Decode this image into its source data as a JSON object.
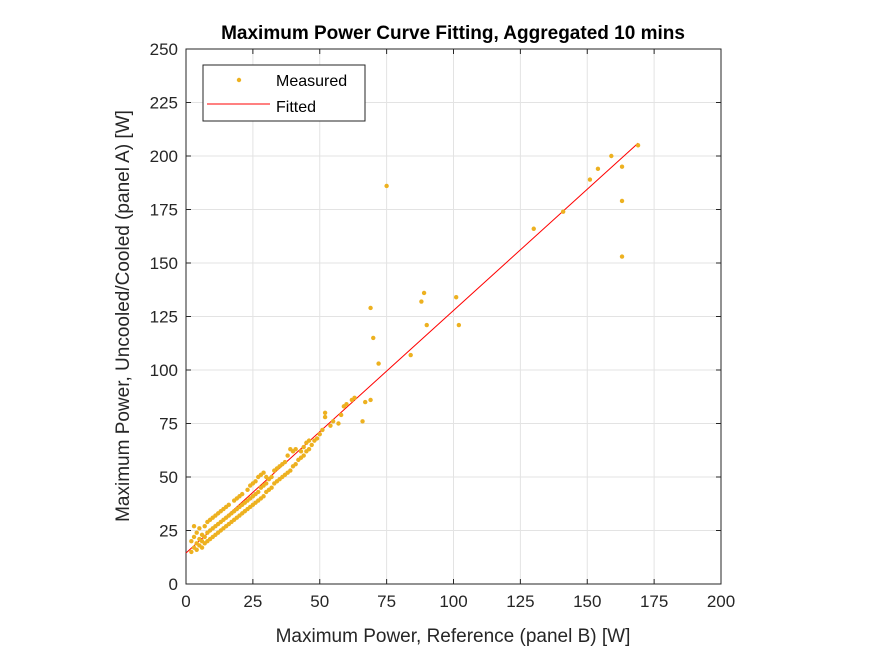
{
  "chart_data": {
    "type": "scatter",
    "title": "Maximum Power Curve Fitting, Aggregated 10 mins",
    "xlabel": "Maximum Power, Reference (panel B) [W]",
    "ylabel": "Maximum Power, Uncooled/Cooled (panel A) [W]",
    "xlim": [
      0,
      200
    ],
    "ylim": [
      0,
      250
    ],
    "xticks": [
      0,
      25,
      50,
      75,
      100,
      125,
      150,
      175,
      200
    ],
    "yticks": [
      0,
      25,
      50,
      75,
      100,
      125,
      150,
      175,
      200,
      225,
      250
    ],
    "grid": true,
    "legend_position": "top-left",
    "series": [
      {
        "name": "Measured",
        "style": "markers",
        "color": "#EDB120",
        "points": [
          [
            2,
            15
          ],
          [
            2,
            20
          ],
          [
            3,
            17
          ],
          [
            3,
            22
          ],
          [
            3,
            27
          ],
          [
            4,
            16
          ],
          [
            4,
            19
          ],
          [
            4,
            24
          ],
          [
            5,
            18
          ],
          [
            5,
            21
          ],
          [
            5,
            26
          ],
          [
            6,
            17
          ],
          [
            6,
            20
          ],
          [
            6,
            23
          ],
          [
            7,
            19
          ],
          [
            7,
            22
          ],
          [
            7,
            27
          ],
          [
            8,
            20
          ],
          [
            8,
            24
          ],
          [
            8,
            29
          ],
          [
            9,
            21
          ],
          [
            9,
            25
          ],
          [
            9,
            30
          ],
          [
            10,
            22
          ],
          [
            10,
            26
          ],
          [
            10,
            31
          ],
          [
            11,
            23
          ],
          [
            11,
            27
          ],
          [
            11,
            32
          ],
          [
            12,
            24
          ],
          [
            12,
            28
          ],
          [
            12,
            33
          ],
          [
            13,
            25
          ],
          [
            13,
            29
          ],
          [
            13,
            34
          ],
          [
            14,
            26
          ],
          [
            14,
            30
          ],
          [
            14,
            35
          ],
          [
            15,
            27
          ],
          [
            15,
            31
          ],
          [
            15,
            36
          ],
          [
            16,
            28
          ],
          [
            16,
            32
          ],
          [
            16,
            37
          ],
          [
            17,
            29
          ],
          [
            17,
            33
          ],
          [
            18,
            30
          ],
          [
            18,
            34
          ],
          [
            18,
            39
          ],
          [
            19,
            31
          ],
          [
            19,
            35
          ],
          [
            19,
            40
          ],
          [
            20,
            32
          ],
          [
            20,
            36
          ],
          [
            20,
            41
          ],
          [
            21,
            33
          ],
          [
            21,
            37
          ],
          [
            21,
            42
          ],
          [
            22,
            34
          ],
          [
            22,
            38
          ],
          [
            23,
            35
          ],
          [
            23,
            39
          ],
          [
            23,
            44
          ],
          [
            24,
            36
          ],
          [
            24,
            40
          ],
          [
            24,
            46
          ],
          [
            25,
            37
          ],
          [
            25,
            41
          ],
          [
            25,
            47
          ],
          [
            26,
            38
          ],
          [
            26,
            42
          ],
          [
            26,
            48
          ],
          [
            27,
            39
          ],
          [
            27,
            43
          ],
          [
            27,
            50
          ],
          [
            28,
            40
          ],
          [
            28,
            45
          ],
          [
            28,
            51
          ],
          [
            29,
            41
          ],
          [
            29,
            46
          ],
          [
            29,
            52
          ],
          [
            30,
            43
          ],
          [
            30,
            47
          ],
          [
            30,
            50
          ],
          [
            31,
            44
          ],
          [
            31,
            49
          ],
          [
            32,
            45
          ],
          [
            32,
            50
          ],
          [
            33,
            47
          ],
          [
            33,
            53
          ],
          [
            34,
            48
          ],
          [
            34,
            54
          ],
          [
            35,
            49
          ],
          [
            35,
            55
          ],
          [
            36,
            50
          ],
          [
            36,
            56
          ],
          [
            37,
            51
          ],
          [
            37,
            57
          ],
          [
            38,
            52
          ],
          [
            38,
            60
          ],
          [
            39,
            53
          ],
          [
            39,
            63
          ],
          [
            40,
            55
          ],
          [
            40,
            62
          ],
          [
            41,
            56
          ],
          [
            41,
            63
          ],
          [
            42,
            58
          ],
          [
            43,
            59
          ],
          [
            43,
            62
          ],
          [
            44,
            60
          ],
          [
            44,
            64
          ],
          [
            45,
            62
          ],
          [
            45,
            66
          ],
          [
            46,
            63
          ],
          [
            46,
            67
          ],
          [
            47,
            65
          ],
          [
            48,
            67
          ],
          [
            49,
            68
          ],
          [
            50,
            70
          ],
          [
            51,
            72
          ],
          [
            52,
            78
          ],
          [
            52,
            80
          ],
          [
            54,
            74
          ],
          [
            55,
            76
          ],
          [
            57,
            75
          ],
          [
            58,
            79
          ],
          [
            59,
            83
          ],
          [
            60,
            84
          ],
          [
            62,
            86
          ],
          [
            63,
            87
          ],
          [
            66,
            76
          ],
          [
            67,
            85
          ],
          [
            69,
            86
          ],
          [
            69,
            129
          ],
          [
            70,
            115
          ],
          [
            72,
            103
          ],
          [
            75,
            186
          ],
          [
            84,
            107
          ],
          [
            88,
            132
          ],
          [
            89,
            136
          ],
          [
            90,
            121
          ],
          [
            101,
            134
          ],
          [
            102,
            121
          ],
          [
            130,
            166
          ],
          [
            141,
            174
          ],
          [
            151,
            189
          ],
          [
            154,
            194
          ],
          [
            159,
            200
          ],
          [
            163,
            195
          ],
          [
            163,
            179
          ],
          [
            163,
            153
          ],
          [
            169,
            205
          ]
        ]
      },
      {
        "name": "Fitted",
        "style": "line",
        "color": "#FF0000",
        "points": [
          [
            0,
            14.5
          ],
          [
            169,
            206
          ]
        ]
      }
    ]
  }
}
